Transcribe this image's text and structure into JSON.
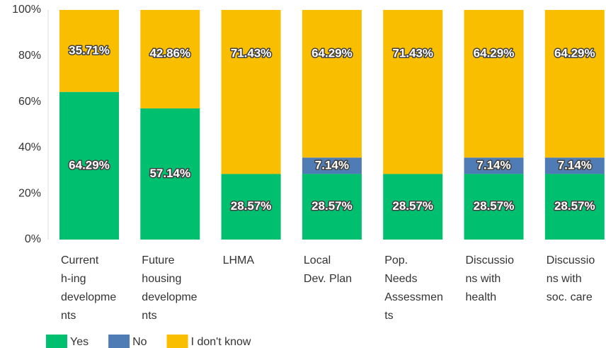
{
  "chart_data": {
    "type": "stacked_bar_100",
    "categories": [
      [
        "Current",
        "h-ing",
        "developme",
        "nts"
      ],
      [
        "Future",
        "housing",
        "developme",
        "nts"
      ],
      [
        "LHMA"
      ],
      [
        "Local",
        "Dev. Plan"
      ],
      [
        "Pop.",
        "Needs",
        "Assessmen",
        "ts"
      ],
      [
        "Discussio",
        "ns with",
        "health"
      ],
      [
        "Discussio",
        "ns with",
        "soc. care"
      ]
    ],
    "series": [
      {
        "name": "Yes",
        "color": "#00bf6f",
        "values": [
          64.29,
          57.14,
          28.57,
          28.57,
          28.57,
          28.57,
          28.57
        ],
        "value_labels": [
          "64.29%",
          "57.14%",
          "28.57%",
          "28.57%",
          "28.57%",
          "28.57%",
          "28.57%"
        ]
      },
      {
        "name": "No",
        "color": "#507cb6",
        "values": [
          0,
          0,
          0,
          7.14,
          0,
          7.14,
          7.14
        ],
        "value_labels": [
          null,
          null,
          null,
          "7.14%",
          null,
          "7.14%",
          "7.14%"
        ]
      },
      {
        "name": "I don't know",
        "color": "#f9be00",
        "values": [
          35.71,
          42.86,
          71.43,
          64.29,
          71.43,
          64.29,
          64.29
        ],
        "value_labels": [
          "35.71%",
          "42.86%",
          "71.43%",
          "64.29%",
          "71.43%",
          "64.29%",
          "64.29%"
        ]
      }
    ],
    "ylim": [
      0,
      100
    ],
    "yticks": [
      {
        "value": 0,
        "label": "0%"
      },
      {
        "value": 20,
        "label": "20%"
      },
      {
        "value": 40,
        "label": "40%"
      },
      {
        "value": 60,
        "label": "60%"
      },
      {
        "value": 80,
        "label": "80%"
      },
      {
        "value": 100,
        "label": "100%"
      }
    ],
    "grid": false,
    "legend": "bottom-left"
  }
}
